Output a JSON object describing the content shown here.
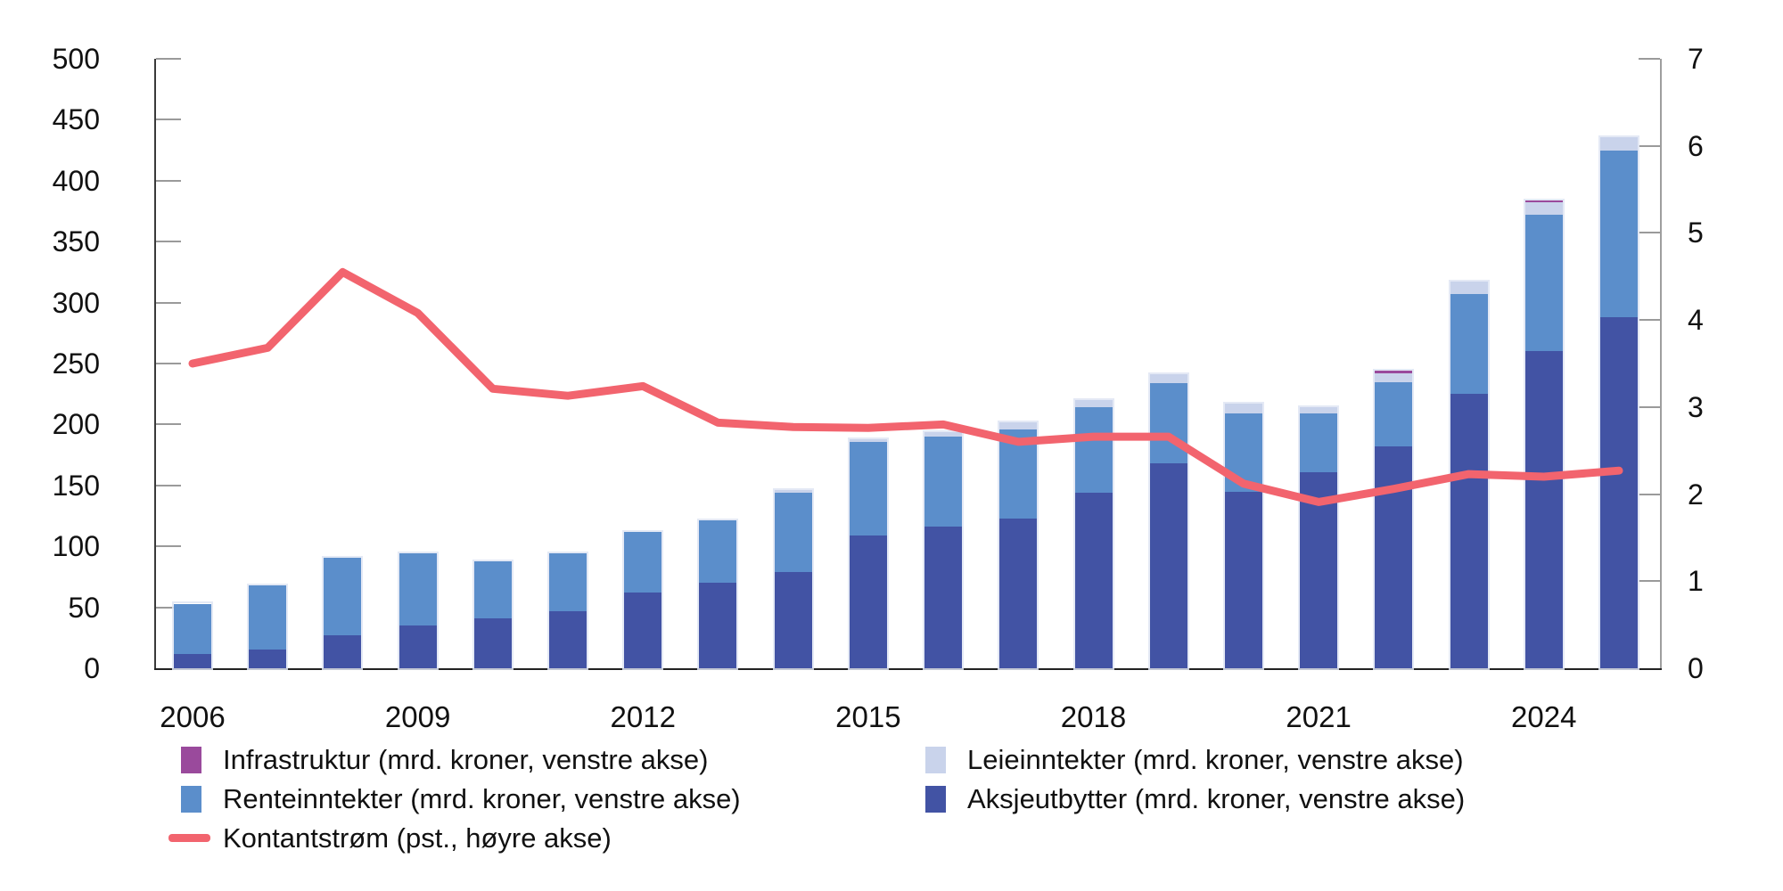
{
  "chart_data": {
    "type": "bar",
    "subtype": "stacked-bars-with-line-on-secondary-axis",
    "title": "",
    "x": [
      2006,
      2007,
      2008,
      2009,
      2010,
      2011,
      2012,
      2013,
      2014,
      2015,
      2016,
      2017,
      2018,
      2019,
      2020,
      2021,
      2022,
      2023,
      2024,
      2025
    ],
    "series": [
      {
        "name": "Aksjeutbytter (mrd. kroner, venstre akse)",
        "key": "aksjeutbytter",
        "type": "bar",
        "axis": "left",
        "color": "#4253a4",
        "values": [
          12,
          15,
          27,
          35,
          41,
          47,
          62,
          70,
          79,
          109,
          116,
          123,
          144,
          168,
          145,
          161,
          182,
          225,
          260,
          288
        ]
      },
      {
        "name": "Renteinntekter (mrd. kroner, venstre akse)",
        "key": "renteinntekter",
        "type": "bar",
        "axis": "left",
        "color": "#5b8ecb",
        "values": [
          41,
          53,
          64,
          59,
          47,
          47,
          50,
          51,
          65,
          77,
          74,
          73,
          70,
          66,
          64,
          48,
          53,
          82,
          112,
          137
        ]
      },
      {
        "name": "Leieinntekter (mrd. kroner, venstre akse)",
        "key": "leieinntekter",
        "type": "bar",
        "axis": "left",
        "color": "#c9d3eb",
        "values": [
          0,
          0,
          0,
          0,
          0,
          0,
          0,
          0,
          2,
          2,
          4,
          6,
          6,
          7,
          8,
          5,
          7,
          10,
          10,
          11
        ]
      },
      {
        "name": "Infrastruktur (mrd. kroner, venstre akse)",
        "key": "infrastruktur",
        "type": "bar",
        "axis": "left",
        "color": "#9a4a9c",
        "values": [
          0,
          0,
          0,
          0,
          0,
          0,
          0,
          0,
          0,
          0,
          0,
          0,
          0,
          0,
          0,
          0,
          2,
          0,
          2,
          0
        ]
      },
      {
        "name": "Kontantstrøm (pst., høyre akse)",
        "key": "kontantstrom",
        "type": "line",
        "axis": "right",
        "color": "#f2646e",
        "values": [
          3.5,
          3.68,
          4.55,
          4.08,
          3.21,
          3.13,
          3.24,
          2.82,
          2.77,
          2.76,
          2.8,
          2.6,
          2.66,
          2.66,
          2.12,
          1.91,
          2.06,
          2.23,
          2.2,
          2.27
        ]
      }
    ],
    "left_axis": {
      "label": "mrd. kroner",
      "min": 0,
      "max": 500,
      "step": 50,
      "ticks": [
        0,
        50,
        100,
        150,
        200,
        250,
        300,
        350,
        400,
        450,
        500
      ]
    },
    "right_axis": {
      "label": "pst.",
      "min": 0,
      "max": 7,
      "step": 1,
      "ticks": [
        0,
        1,
        2,
        3,
        4,
        5,
        6,
        7
      ]
    },
    "x_tick_labels": [
      "2006",
      "2009",
      "2012",
      "2015",
      "2018",
      "2021",
      "2024"
    ],
    "grid": "off",
    "legend_position": "bottom",
    "legend": [
      {
        "label": "Infrastruktur (mrd. kroner, venstre akse)",
        "series": "infrastruktur",
        "swatch": "box",
        "color": "#9a4a9c",
        "col": 0,
        "row": 0
      },
      {
        "label": "Renteinntekter (mrd. kroner, venstre akse)",
        "series": "renteinntekter",
        "swatch": "box",
        "color": "#5b8ecb",
        "col": 0,
        "row": 1
      },
      {
        "label": "Kontantstrøm (pst., høyre akse)",
        "series": "kontantstrom",
        "swatch": "line",
        "color": "#f2646e",
        "col": 0,
        "row": 2
      },
      {
        "label": "Leieinntekter (mrd. kroner, venstre akse)",
        "series": "leieinntekter",
        "swatch": "box",
        "color": "#c9d3eb",
        "col": 1,
        "row": 0
      },
      {
        "label": "Aksjeutbytter (mrd. kroner, venstre akse)",
        "series": "aksjeutbytter",
        "swatch": "box",
        "color": "#4253a4",
        "col": 1,
        "row": 1
      }
    ],
    "colors": {
      "aksjeutbytter": "#4253a4",
      "renteinntekter": "#5b8ecb",
      "leieinntekter": "#c9d3eb",
      "infrastruktur": "#9a4a9c",
      "kontantstrom": "#f2646e"
    }
  }
}
